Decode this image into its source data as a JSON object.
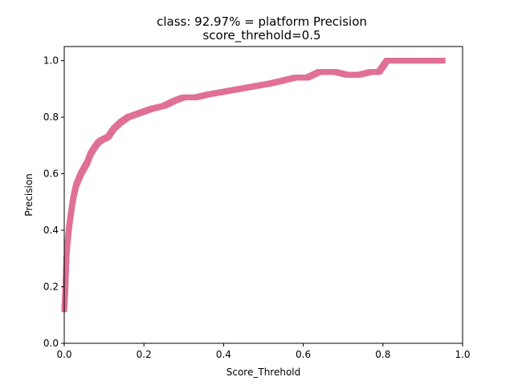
{
  "chart_data": {
    "type": "scatter",
    "title": "class: 92.97% = platform Precision",
    "subtitle": "score_threhold=0.5",
    "xlabel": "Score_Threhold",
    "ylabel": "Precision",
    "xlim": [
      0.0,
      1.0
    ],
    "ylim": [
      0.0,
      1.05
    ],
    "xticks": [
      "0.0",
      "0.2",
      "0.4",
      "0.6",
      "0.8",
      "1.0"
    ],
    "yticks": [
      "0.0",
      "0.2",
      "0.4",
      "0.6",
      "0.8",
      "1.0"
    ],
    "grid": false,
    "legend": "none",
    "marker": "square",
    "series": [
      {
        "color": "#e07095",
        "points": [
          [
            0.0,
            0.12
          ],
          [
            0.001,
            0.14
          ],
          [
            0.002,
            0.17
          ],
          [
            0.003,
            0.2
          ],
          [
            0.004,
            0.24
          ],
          [
            0.005,
            0.28
          ],
          [
            0.006,
            0.31
          ],
          [
            0.008,
            0.35
          ],
          [
            0.01,
            0.38
          ],
          [
            0.012,
            0.41
          ],
          [
            0.015,
            0.44
          ],
          [
            0.018,
            0.47
          ],
          [
            0.021,
            0.5
          ],
          [
            0.025,
            0.53
          ],
          [
            0.03,
            0.56
          ],
          [
            0.036,
            0.58
          ],
          [
            0.042,
            0.6
          ],
          [
            0.05,
            0.62
          ],
          [
            0.058,
            0.64
          ],
          [
            0.066,
            0.67
          ],
          [
            0.075,
            0.69
          ],
          [
            0.085,
            0.71
          ],
          [
            0.095,
            0.72
          ],
          [
            0.11,
            0.73
          ],
          [
            0.125,
            0.76
          ],
          [
            0.14,
            0.78
          ],
          [
            0.16,
            0.8
          ],
          [
            0.18,
            0.81
          ],
          [
            0.2,
            0.82
          ],
          [
            0.22,
            0.83
          ],
          [
            0.25,
            0.84
          ],
          [
            0.28,
            0.86
          ],
          [
            0.3,
            0.87
          ],
          [
            0.33,
            0.87
          ],
          [
            0.36,
            0.88
          ],
          [
            0.4,
            0.89
          ],
          [
            0.44,
            0.9
          ],
          [
            0.48,
            0.91
          ],
          [
            0.52,
            0.92
          ],
          [
            0.55,
            0.93
          ],
          [
            0.58,
            0.94
          ],
          [
            0.61,
            0.94
          ],
          [
            0.64,
            0.96
          ],
          [
            0.68,
            0.96
          ],
          [
            0.71,
            0.95
          ],
          [
            0.74,
            0.95
          ],
          [
            0.77,
            0.96
          ],
          [
            0.79,
            0.96
          ],
          [
            0.8,
            0.98
          ],
          [
            0.81,
            1.0
          ],
          [
            0.83,
            1.0
          ],
          [
            0.86,
            1.0
          ],
          [
            0.89,
            1.0
          ],
          [
            0.92,
            1.0
          ],
          [
            0.95,
            1.0
          ]
        ]
      }
    ]
  }
}
